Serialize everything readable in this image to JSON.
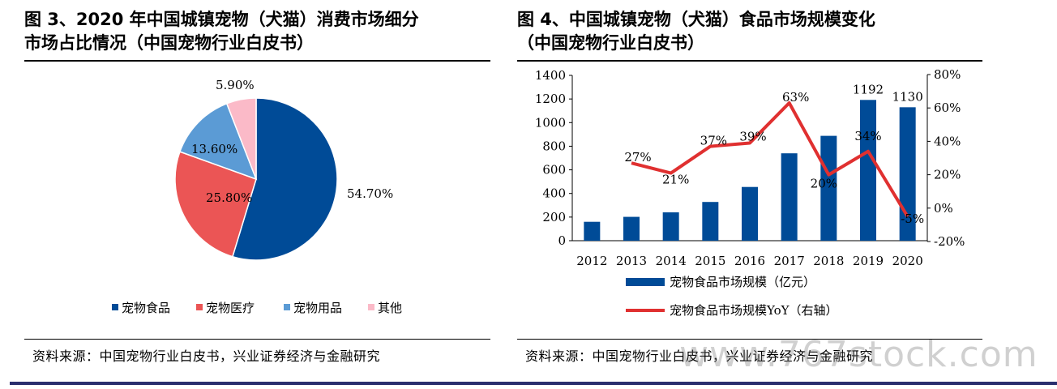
{
  "left": {
    "title_line1": "图 3、2020 年中国城镇宠物（犬猫）消费市场细分",
    "title_line2": "市场占比情况（中国宠物行业白皮书）",
    "source": "资料来源：中国宠物行业白皮书，兴业证券经济与金融研究"
  },
  "right": {
    "title_line1": "图 4、中国城镇宠物（犬猫）食品市场规模变化",
    "title_line2": "（中国宠物行业白皮书）",
    "source": "资料来源：中国宠物行业白皮书，兴业证券经济与金融研究"
  },
  "watermark": "www.767stock.com",
  "colors": {
    "pie": [
      "#004B97",
      "#EB5555",
      "#5B9BD5",
      "#FBBAC8"
    ],
    "bar": "#004B97",
    "line": "#E03030"
  },
  "chart_data": [
    {
      "type": "pie",
      "slices": [
        {
          "name": "宠物食品",
          "value": 54.7,
          "label": "54.70%"
        },
        {
          "name": "宠物医疗",
          "value": 25.8,
          "label": "25.80%"
        },
        {
          "name": "宠物用品",
          "value": 13.6,
          "label": "13.60%"
        },
        {
          "name": "其他",
          "value": 5.9,
          "label": "5.90%"
        }
      ],
      "legend_position": "bottom"
    },
    {
      "type": "bar",
      "categories": [
        "2012",
        "2013",
        "2014",
        "2015",
        "2016",
        "2017",
        "2018",
        "2019",
        "2020"
      ],
      "series": [
        {
          "name": "宠物食品市场规模（亿元）",
          "type": "bar",
          "axis": "left",
          "values": [
            160,
            202,
            240,
            328,
            455,
            740,
            888,
            1192,
            1130
          ],
          "data_labels": [
            "",
            "",
            "",
            "",
            "",
            "",
            "",
            "1192",
            "1130"
          ]
        },
        {
          "name": "宠物食品市场规模YoY（右轴）",
          "type": "line",
          "axis": "right",
          "values": [
            null,
            27,
            21,
            37,
            39,
            63,
            20,
            34,
            -5
          ],
          "data_labels": [
            "",
            "27%",
            "21%",
            "37%",
            "39%",
            "63%",
            "20%",
            "34%",
            "-5%"
          ]
        }
      ],
      "y_left": {
        "min": 0,
        "max": 1400,
        "ticks": [
          "0",
          "200",
          "400",
          "600",
          "800",
          "1000",
          "1200",
          "1400"
        ]
      },
      "y_right": {
        "min": -20,
        "max": 80,
        "ticks": [
          "-20%",
          "0%",
          "20%",
          "40%",
          "60%",
          "80%"
        ]
      },
      "legend_position": "bottom"
    }
  ]
}
